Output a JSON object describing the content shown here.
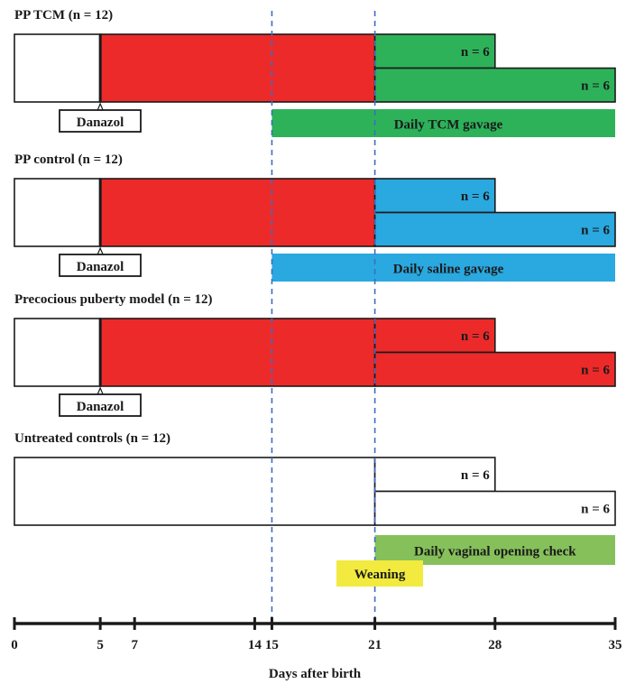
{
  "colors": {
    "red": "#ec2a2a",
    "green": "#2db25a",
    "blue": "#2aa8e0",
    "lightgreen": "#86c05a",
    "yellow": "#f2ea3e",
    "white": "#ffffff",
    "line": "#1a1a1a",
    "dashed": "#3f6bc4"
  },
  "axis": {
    "title": "Days after birth",
    "min": 0,
    "max": 35,
    "ticks": [
      {
        "value": 0,
        "label": "0"
      },
      {
        "value": 5,
        "label": "5"
      },
      {
        "value": 7,
        "label": "7"
      },
      {
        "value": 14,
        "label": "14"
      },
      {
        "value": 15,
        "label": "15"
      },
      {
        "value": 21,
        "label": "21"
      },
      {
        "value": 28,
        "label": "28"
      },
      {
        "value": 35,
        "label": "35"
      }
    ]
  },
  "dashed_lines": [
    15,
    21
  ],
  "groups": [
    {
      "label": "PP TCM (n = 12)",
      "pre_fill": "white",
      "mid_fill": "red",
      "post_fill": "green",
      "split": [
        {
          "label": "n = 6",
          "end": 28
        },
        {
          "label": "n = 6",
          "end": 35
        }
      ],
      "danazol": "Danazol",
      "treatment": {
        "label": "Daily TCM gavage",
        "fill": "green",
        "start": 15,
        "end": 35
      }
    },
    {
      "label": "PP control (n = 12)",
      "pre_fill": "white",
      "mid_fill": "red",
      "post_fill": "blue",
      "split": [
        {
          "label": "n = 6",
          "end": 28
        },
        {
          "label": "n = 6",
          "end": 35
        }
      ],
      "danazol": "Danazol",
      "treatment": {
        "label": "Daily saline gavage",
        "fill": "blue",
        "start": 15,
        "end": 35
      }
    },
    {
      "label": "Precocious puberty model (n = 12)",
      "pre_fill": "white",
      "mid_fill": "red",
      "post_fill": "red",
      "split": [
        {
          "label": "n = 6",
          "end": 28
        },
        {
          "label": "n = 6",
          "end": 35
        }
      ],
      "danazol": "Danazol",
      "treatment": null
    },
    {
      "label": "Untreated controls (n = 12)",
      "pre_fill": "white",
      "mid_fill": "white",
      "post_fill": "white",
      "split": [
        {
          "label": "n = 6",
          "end": 28
        },
        {
          "label": "n = 6",
          "end": 35
        }
      ],
      "danazol": null,
      "treatment": {
        "label": "Daily vaginal opening check",
        "fill": "lightgreen",
        "start": 21,
        "end": 35
      }
    }
  ],
  "weaning": {
    "label": "Weaning",
    "fill": "yellow"
  }
}
